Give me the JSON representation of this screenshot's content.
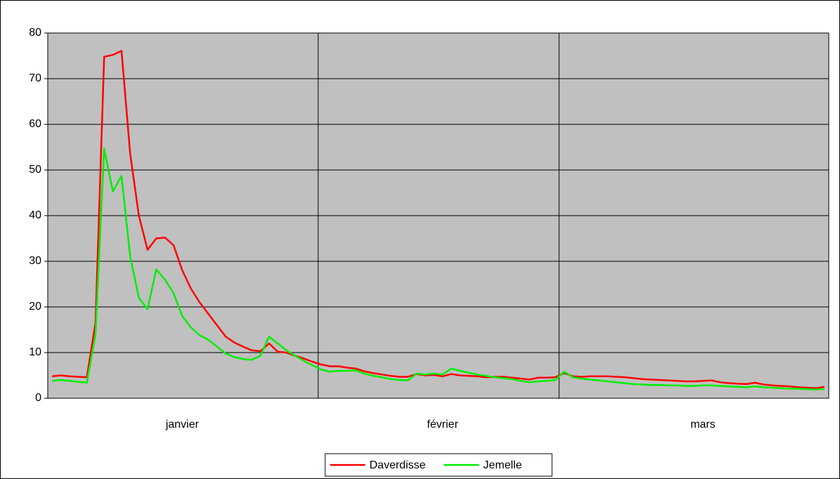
{
  "chart_data": {
    "type": "line",
    "categories": [
      null,
      null,
      null,
      null,
      null,
      null,
      null,
      null,
      null,
      null,
      null,
      null,
      null,
      null,
      null,
      "janvier",
      null,
      null,
      null,
      null,
      null,
      null,
      null,
      null,
      null,
      null,
      null,
      null,
      null,
      null,
      null,
      null,
      null,
      null,
      null,
      null,
      null,
      null,
      null,
      null,
      null,
      null,
      null,
      null,
      null,
      "février",
      null,
      null,
      null,
      null,
      null,
      null,
      null,
      null,
      null,
      null,
      null,
      null,
      null,
      null,
      null,
      null,
      null,
      null,
      null,
      null,
      null,
      null,
      null,
      null,
      null,
      null,
      null,
      null,
      null,
      "mars",
      null,
      null,
      null,
      null,
      null,
      null,
      null,
      null,
      null,
      null,
      null,
      null,
      null,
      null
    ],
    "series": [
      {
        "name": "Daverdisse",
        "color": "#ff0000",
        "values": [
          4.8,
          5,
          4.8,
          4.7,
          4.6,
          16.5,
          74.8,
          75.2,
          76.1,
          53.5,
          40,
          32.5,
          35,
          35.2,
          33.5,
          28,
          24,
          21,
          18.5,
          16,
          13.5,
          12.2,
          11.3,
          10.5,
          10.3,
          12,
          10.2,
          10,
          9.3,
          8.7,
          8,
          7.4,
          7,
          7,
          6.7,
          6.5,
          5.9,
          5.5,
          5.2,
          4.9,
          4.7,
          4.7,
          5.3,
          5,
          5.1,
          4.8,
          5.3,
          5,
          4.9,
          4.8,
          4.6,
          4.7,
          4.7,
          4.5,
          4.3,
          4.1,
          4.5,
          4.5,
          4.6,
          5.5,
          4.8,
          4.7,
          4.8,
          4.8,
          4.8,
          4.7,
          4.6,
          4.4,
          4.2,
          4.1,
          4,
          3.9,
          3.8,
          3.7,
          3.7,
          3.8,
          3.9,
          3.5,
          3.3,
          3.2,
          3.1,
          3.4,
          3,
          2.8,
          2.7,
          2.6,
          2.4,
          2.3,
          2.2,
          2.5
        ]
      },
      {
        "name": "Jemelle",
        "color": "#00ee00",
        "values": [
          3.8,
          4,
          3.8,
          3.6,
          3.4,
          14,
          54.7,
          45.3,
          48.7,
          31,
          22,
          19.5,
          28.2,
          26,
          23,
          18,
          15.5,
          13.8,
          12.8,
          11.3,
          9.8,
          9,
          8.6,
          8.4,
          9.3,
          13.5,
          12,
          10.5,
          9.3,
          8.2,
          7.2,
          6.3,
          5.8,
          6,
          6,
          6.1,
          5.4,
          4.9,
          4.6,
          4.2,
          4,
          3.9,
          5.4,
          5.2,
          5.4,
          5.2,
          6.5,
          6,
          5.6,
          5.2,
          4.9,
          4.6,
          4.4,
          4.2,
          3.8,
          3.5,
          3.7,
          3.8,
          4,
          5.8,
          4.6,
          4.3,
          4.1,
          3.9,
          3.7,
          3.5,
          3.3,
          3.1,
          3,
          2.9,
          2.9,
          2.8,
          2.8,
          2.7,
          2.7,
          2.8,
          2.8,
          2.7,
          2.6,
          2.5,
          2.4,
          2.6,
          2.4,
          2.3,
          2.2,
          2.1,
          2.1,
          2,
          1.9,
          2
        ]
      }
    ],
    "ylim": [
      0,
      80
    ],
    "yticks": [
      0,
      10,
      20,
      30,
      40,
      50,
      60,
      70,
      80
    ],
    "grid": true,
    "legend": "bottom"
  }
}
